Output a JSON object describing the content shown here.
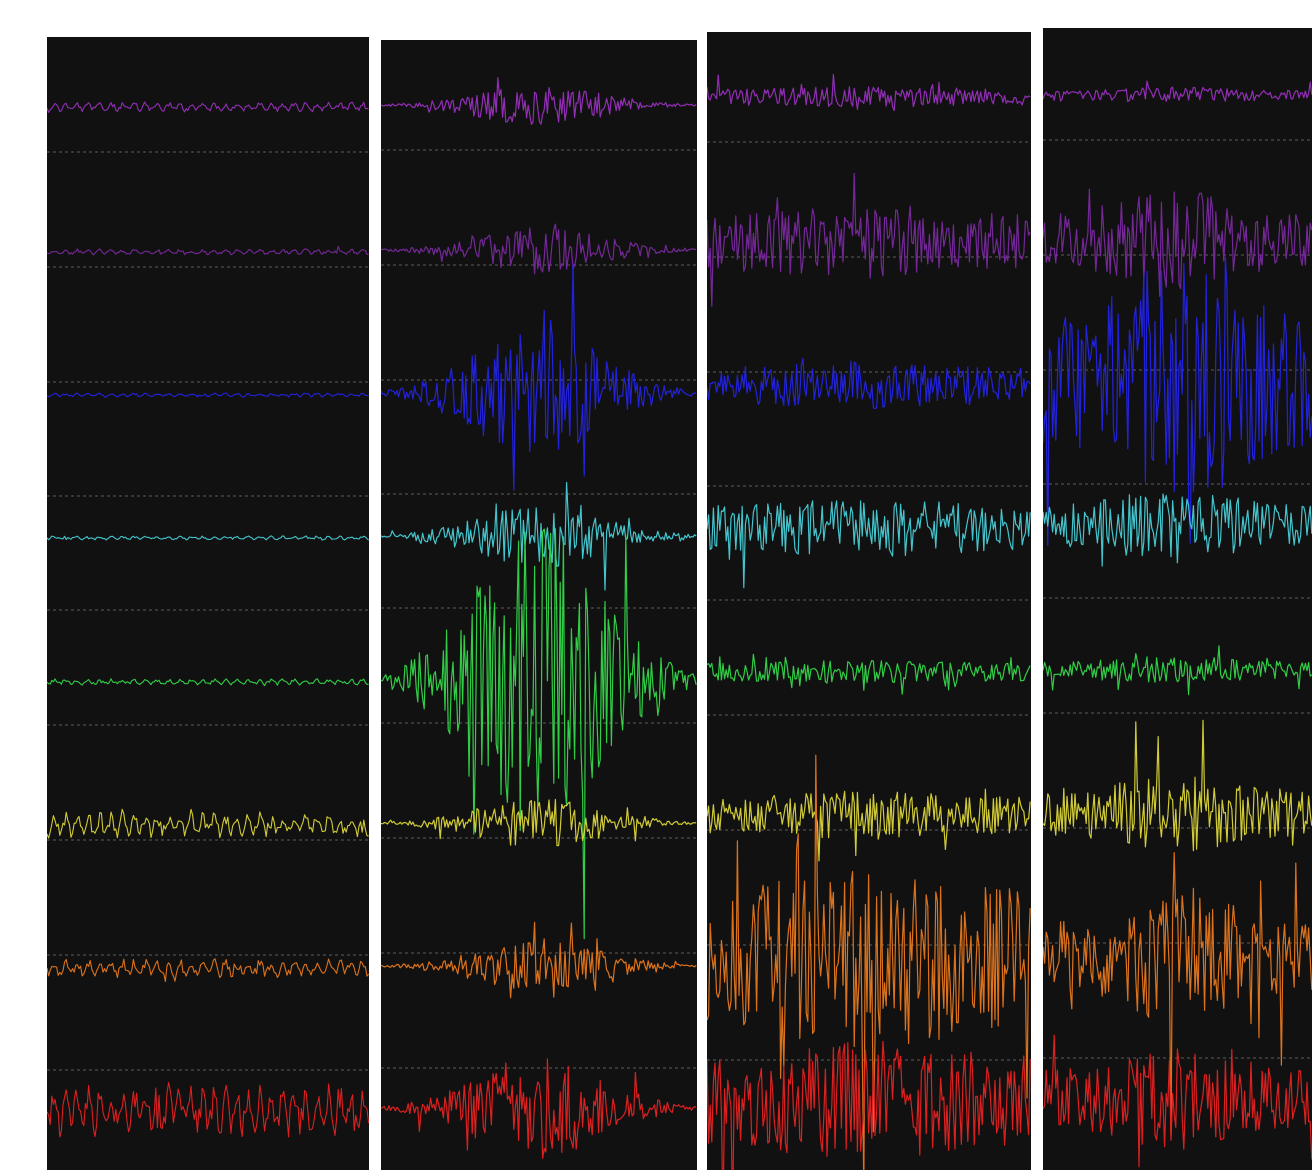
{
  "channels": [
    {
      "color": "#9a30c0"
    },
    {
      "color": "#7a2aa0"
    },
    {
      "color": "#2424e8"
    },
    {
      "color": "#48d0d8"
    },
    {
      "color": "#34d84a"
    },
    {
      "color": "#dcd63a"
    },
    {
      "color": "#e8781e"
    },
    {
      "color": "#e82222"
    }
  ]
}
